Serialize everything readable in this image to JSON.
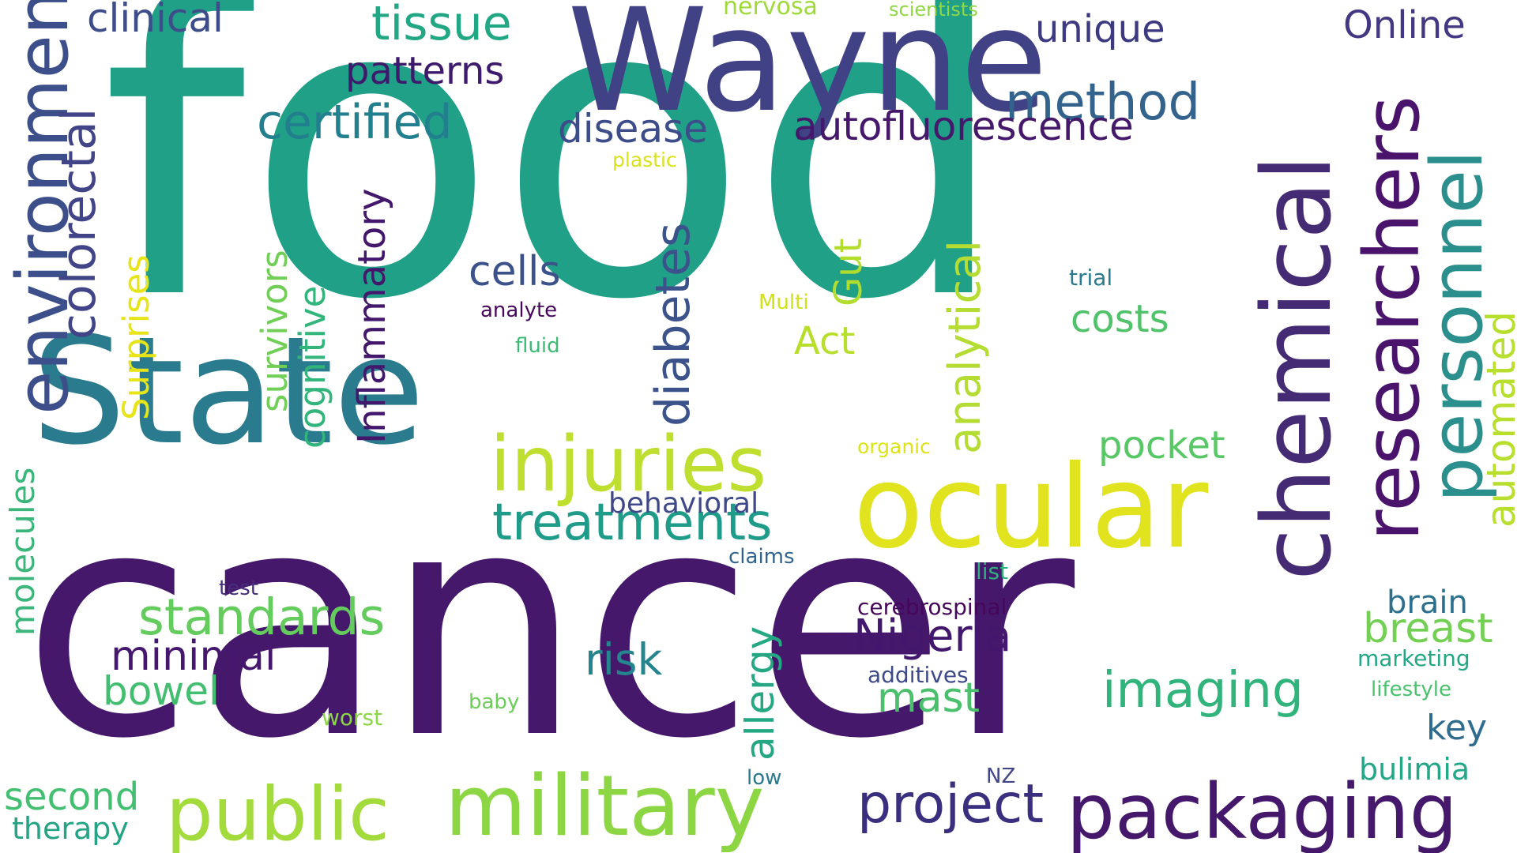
{
  "words": [
    {
      "text": "food",
      "color": "#21a088"
    },
    {
      "text": "cancer",
      "color": "#45186b"
    },
    {
      "text": "State",
      "color": "#2b7b8e"
    },
    {
      "text": "Wayne",
      "color": "#414186"
    },
    {
      "text": "chemical",
      "color": "#452a74"
    },
    {
      "text": "ocular",
      "color": "#e0e31e"
    },
    {
      "text": "packaging",
      "color": "#45186b"
    },
    {
      "text": "military",
      "color": "#8cd644"
    },
    {
      "text": "public",
      "color": "#a3db3c"
    },
    {
      "text": "injuries",
      "color": "#bede30"
    },
    {
      "text": "researchers",
      "color": "#4a136c"
    },
    {
      "text": "treatments",
      "color": "#1f9b8a"
    },
    {
      "text": "personnel",
      "color": "#2b8f8d"
    },
    {
      "text": "environment",
      "color": "#3d4f8b"
    },
    {
      "text": "certified",
      "color": "#227f8e"
    },
    {
      "text": "standards",
      "color": "#63cc5c"
    },
    {
      "text": "project",
      "color": "#3a2f7e"
    },
    {
      "text": "imaging",
      "color": "#30b47b"
    },
    {
      "text": "colorectal",
      "color": "#414487"
    },
    {
      "text": "automated",
      "color": "#b8de2e"
    },
    {
      "text": "analytical",
      "color": "#b4dc33"
    },
    {
      "text": "method",
      "color": "#33638d"
    },
    {
      "text": "diabetes",
      "color": "#3b528b"
    },
    {
      "text": "tissue",
      "color": "#22a785"
    },
    {
      "text": "Nigeria",
      "color": "#42176d"
    },
    {
      "text": "autofluorescence",
      "color": "#45186b"
    },
    {
      "text": "minimal",
      "color": "#46176e"
    },
    {
      "text": "patterns",
      "color": "#3e1a6d"
    },
    {
      "text": "disease",
      "color": "#3c4d8a"
    },
    {
      "text": "risk",
      "color": "#25858e"
    },
    {
      "text": "breast",
      "color": "#74d055"
    },
    {
      "text": "Inflammatory",
      "color": "#42176c"
    },
    {
      "text": "clinical",
      "color": "#3c4d8a"
    },
    {
      "text": "mast",
      "color": "#4ac06c"
    },
    {
      "text": "cells",
      "color": "#3b528b"
    },
    {
      "text": "unique",
      "color": "#3e3a81"
    },
    {
      "text": "Online",
      "color": "#453882"
    },
    {
      "text": "costs",
      "color": "#4fc26a"
    },
    {
      "text": "pocket",
      "color": "#58c765"
    },
    {
      "text": "bowel",
      "color": "#43be71"
    },
    {
      "text": "allergy",
      "color": "#25a784"
    },
    {
      "text": "second",
      "color": "#43bf71"
    },
    {
      "text": "Surprises",
      "color": "#e7e419"
    },
    {
      "text": "survivors",
      "color": "#71cf57"
    },
    {
      "text": "cognitive",
      "color": "#31b57b"
    },
    {
      "text": "molecules",
      "color": "#3ab67a"
    },
    {
      "text": "Gut",
      "color": "#b2dd2d"
    },
    {
      "text": "Act",
      "color": "#b6de2b"
    },
    {
      "text": "key",
      "color": "#2f6c8e"
    },
    {
      "text": "brain",
      "color": "#2d708e"
    },
    {
      "text": "therapy",
      "color": "#25a485"
    },
    {
      "text": "bulimia",
      "color": "#24a786"
    },
    {
      "text": "behavioral",
      "color": "#3f4889"
    },
    {
      "text": "cerebrospinal",
      "color": "#46075a"
    },
    {
      "text": "additives",
      "color": "#3e4a89"
    },
    {
      "text": "nervosa",
      "color": "#9fda3a"
    },
    {
      "text": "scientists",
      "color": "#8fd744"
    },
    {
      "text": "plastic",
      "color": "#d9e21a"
    },
    {
      "text": "Multi",
      "color": "#d0e11c"
    },
    {
      "text": "analyte",
      "color": "#47075c"
    },
    {
      "text": "fluid",
      "color": "#3cbb75"
    },
    {
      "text": "trial",
      "color": "#297a8e"
    },
    {
      "text": "organic",
      "color": "#dde318"
    },
    {
      "text": "claims",
      "color": "#33638d"
    },
    {
      "text": "test",
      "color": "#472d7b"
    },
    {
      "text": "list",
      "color": "#2db27d"
    },
    {
      "text": "marketing",
      "color": "#22a785"
    },
    {
      "text": "lifestyle",
      "color": "#4ac16d"
    },
    {
      "text": "baby",
      "color": "#6ccd5a"
    },
    {
      "text": "worst",
      "color": "#8bd646"
    },
    {
      "text": "low",
      "color": "#2a788e"
    },
    {
      "text": "NZ",
      "color": "#404688"
    }
  ]
}
